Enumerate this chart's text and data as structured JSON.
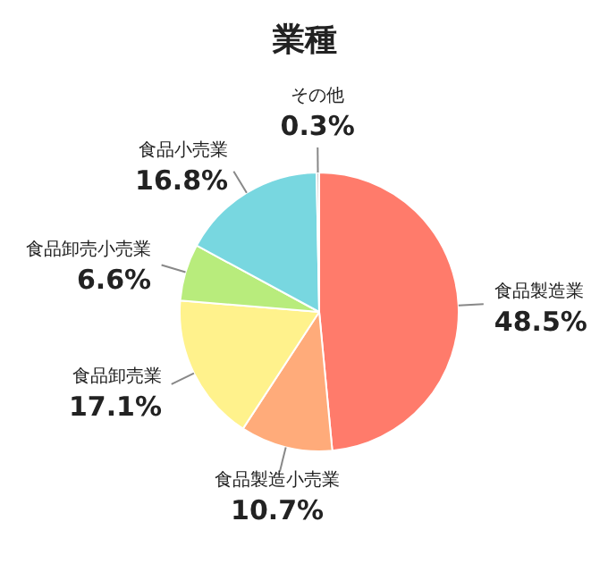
{
  "chart_data": {
    "type": "pie",
    "title": "業種",
    "categories": [
      "食品製造業",
      "食品製造小売業",
      "食品卸売業",
      "食品卸売小売業",
      "食品小売業",
      "その他"
    ],
    "values": [
      48.5,
      10.7,
      17.1,
      6.6,
      16.8,
      0.3
    ],
    "colors": [
      "#ff7b6b",
      "#ffab7a",
      "#fff28c",
      "#b8ec7c",
      "#78d7e0",
      "#c8c8c8"
    ],
    "value_labels": [
      "48.5%",
      "10.7%",
      "17.1%",
      "6.6%",
      "16.8%",
      "0.3%"
    ]
  }
}
